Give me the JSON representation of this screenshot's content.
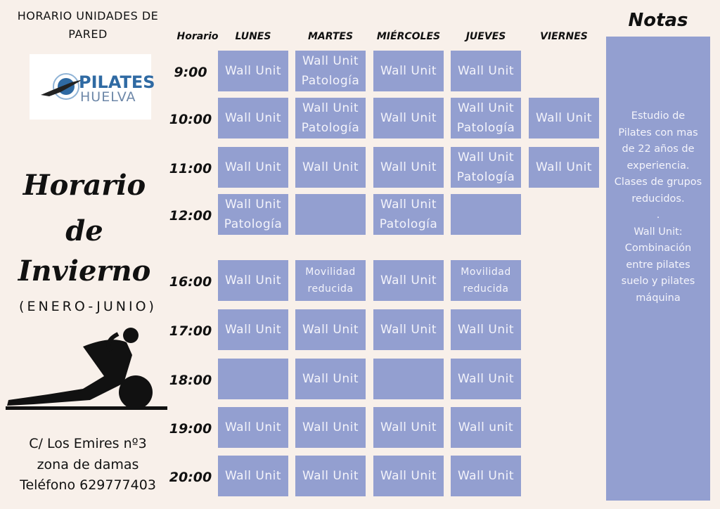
{
  "title": "HORARIO UNIDADES DE PARED",
  "logo": {
    "line1": "PILATES",
    "line2": "HUELVA",
    "color": "#2f6aa3"
  },
  "season": {
    "line1": "Horario",
    "line2": "de",
    "line3": "Invierno",
    "range": "(ENERO-JUNIO)"
  },
  "address": {
    "street": "C/ Los Emires nº3",
    "area": "zona de damas",
    "phone": "Teléfono 629777403"
  },
  "schedule": {
    "time_header": "Horario",
    "days": [
      "LUNES",
      "MARTES",
      "MIÉRCOLES",
      "JUEVES",
      "VIERNES"
    ],
    "rows": [
      {
        "time": "9:00",
        "cells": [
          "Wall Unit",
          "Wall Unit\nPatología",
          "Wall Unit",
          "Wall Unit",
          null
        ]
      },
      {
        "time": "10:00",
        "cells": [
          "Wall Unit",
          "Wall Unit\nPatología",
          "Wall Unit",
          "Wall Unit\nPatología",
          "Wall Unit"
        ]
      },
      {
        "time": "11:00",
        "cells": [
          "Wall Unit",
          "Wall Unit",
          "Wall Unit",
          "Wall Unit\nPatología",
          "Wall Unit"
        ]
      },
      {
        "time": "12:00",
        "cells": [
          "Wall Unit\nPatología",
          "",
          "Wall Unit\nPatología",
          "",
          null
        ]
      },
      {
        "time": "16:00",
        "cells": [
          "Wall Unit",
          "Movilidad\nreducida",
          "Wall Unit",
          "Movilidad\nreducida",
          null
        ]
      },
      {
        "time": "17:00",
        "cells": [
          "Wall Unit",
          "Wall Unit",
          "Wall Unit",
          "Wall Unit",
          null
        ]
      },
      {
        "time": "18:00",
        "cells": [
          "",
          "Wall Unit",
          "",
          "Wall Unit",
          null
        ]
      },
      {
        "time": "19:00",
        "cells": [
          "Wall Unit",
          "Wall Unit",
          "Wall Unit",
          "Wall unit",
          null
        ]
      },
      {
        "time": "20:00",
        "cells": [
          "Wall Unit",
          "Wall Unit",
          "Wall Unit",
          "Wall Unit",
          null
        ]
      }
    ]
  },
  "notes": {
    "title": "Notas",
    "text": "Estudio de\nPilates con mas\nde 22 años de\nexperiencia.\nClases de grupos\nreducidos.\n.\nWall Unit:\nCombinación\nentre pilates\nsuelo y pilates\nmáquina"
  },
  "colors": {
    "cell": "#939fd0",
    "background": "#f8f0ea"
  }
}
